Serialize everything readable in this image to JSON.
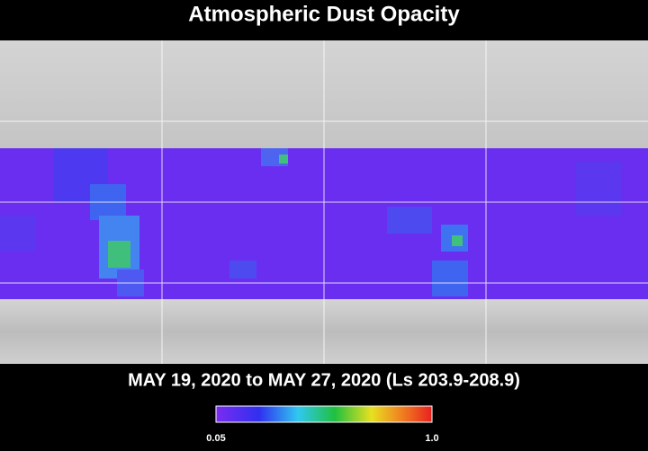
{
  "header": {
    "title": "Atmospheric Dust Opacity"
  },
  "date_range": "MAY 19, 2020 to MAY 27, 2020 (Ls 203.9-208.9)",
  "colorbar": {
    "min_label": "0.05",
    "max_label": "1.0"
  }
}
